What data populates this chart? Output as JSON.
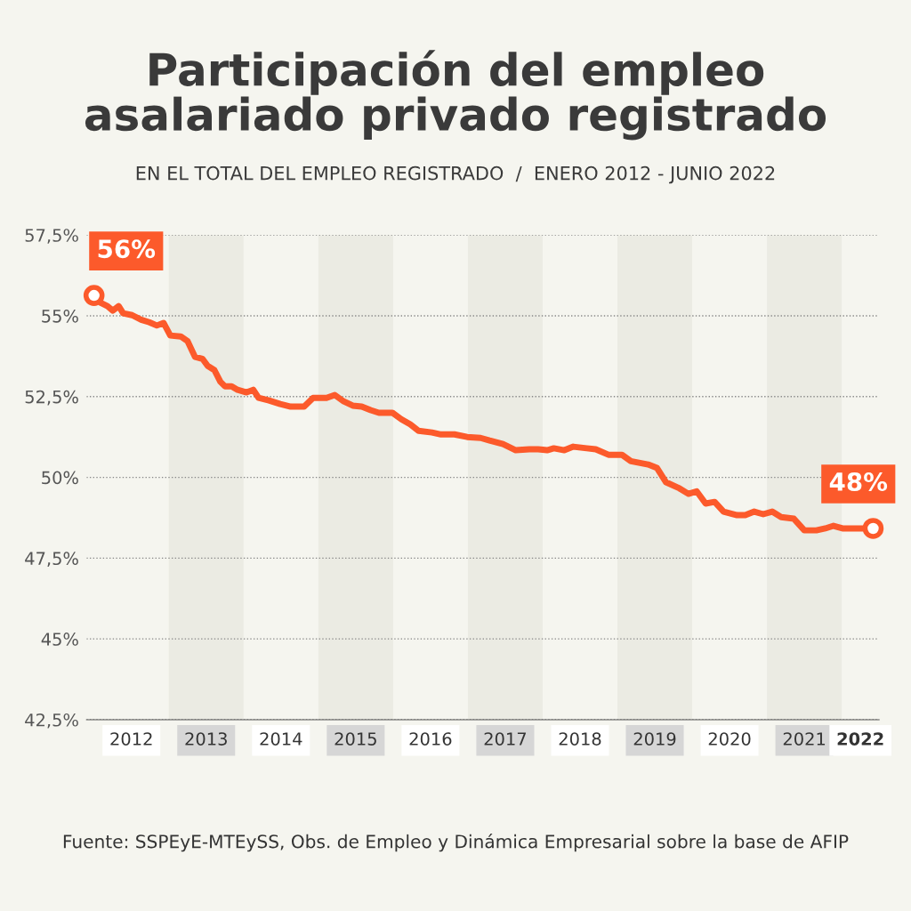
{
  "chart_data": {
    "type": "line",
    "title": "Participación del empleo\nasalariado privado registrado",
    "subtitle": "EN EL TOTAL DEL EMPLEO REGISTRADO  /  ENERO 2012 - JUNIO 2022",
    "x": [
      2012.0,
      2012.09,
      2012.18,
      2012.25,
      2012.33,
      2012.39,
      2012.51,
      2012.63,
      2012.74,
      2012.84,
      2012.93,
      2013.02,
      2013.16,
      2013.25,
      2013.35,
      2013.45,
      2013.52,
      2013.61,
      2013.69,
      2013.75,
      2013.84,
      2013.92,
      2014.04,
      2014.13,
      2014.2,
      2014.34,
      2014.49,
      2014.63,
      2014.81,
      2014.93,
      2015.11,
      2015.22,
      2015.34,
      2015.46,
      2015.58,
      2015.7,
      2015.81,
      2015.99,
      2016.11,
      2016.23,
      2016.34,
      2016.52,
      2016.64,
      2016.82,
      2016.99,
      2017.17,
      2017.29,
      2017.47,
      2017.64,
      2017.82,
      2017.94,
      2018.06,
      2018.15,
      2018.29,
      2018.41,
      2018.59,
      2018.71,
      2018.88,
      2019.06,
      2019.18,
      2019.41,
      2019.53,
      2019.65,
      2019.83,
      2019.95,
      2020.06,
      2020.18,
      2020.3,
      2020.42,
      2020.6,
      2020.71,
      2020.83,
      2020.95,
      2021.07,
      2021.19,
      2021.36,
      2021.5,
      2021.66,
      2021.78,
      2021.89,
      2022.01,
      2022.19,
      2022.42
    ],
    "series": [
      {
        "color": "#fc5a2b",
        "values": [
          55.63,
          55.4,
          55.3,
          55.16,
          55.3,
          55.08,
          55.02,
          54.88,
          54.8,
          54.7,
          54.78,
          54.39,
          54.36,
          54.22,
          53.73,
          53.67,
          53.45,
          53.32,
          52.96,
          52.82,
          52.82,
          52.71,
          52.63,
          52.71,
          52.46,
          52.38,
          52.27,
          52.19,
          52.19,
          52.46,
          52.46,
          52.55,
          52.35,
          52.22,
          52.19,
          52.08,
          52.0,
          52.0,
          51.8,
          51.64,
          51.44,
          51.39,
          51.33,
          51.33,
          51.25,
          51.22,
          51.14,
          51.03,
          50.84,
          50.87,
          50.87,
          50.84,
          50.9,
          50.84,
          50.95,
          50.9,
          50.87,
          50.7,
          50.7,
          50.5,
          50.4,
          50.29,
          49.85,
          49.66,
          49.49,
          49.57,
          49.19,
          49.24,
          48.94,
          48.83,
          48.83,
          48.94,
          48.86,
          48.94,
          48.77,
          48.72,
          48.36,
          48.36,
          48.42,
          48.5,
          48.42,
          48.42,
          48.42
        ]
      }
    ],
    "xlim": [
      2011.9,
      2022.5
    ],
    "ylim": [
      42.5,
      57.5
    ],
    "xticks": [
      {
        "value": 2012.5,
        "label": "2012"
      },
      {
        "value": 2013.5,
        "label": "2013"
      },
      {
        "value": 2014.5,
        "label": "2014"
      },
      {
        "value": 2015.5,
        "label": "2015"
      },
      {
        "value": 2016.5,
        "label": "2016"
      },
      {
        "value": 2017.5,
        "label": "2017"
      },
      {
        "value": 2018.5,
        "label": "2018"
      },
      {
        "value": 2019.5,
        "label": "2019"
      },
      {
        "value": 2020.5,
        "label": "2020"
      },
      {
        "value": 2021.5,
        "label": "2021"
      },
      {
        "value": 2022.25,
        "label": "2022"
      }
    ],
    "yticks": [
      {
        "value": 42.5,
        "label": "42,5%"
      },
      {
        "value": 45,
        "label": "45%"
      },
      {
        "value": 47.5,
        "label": "47,5%"
      },
      {
        "value": 50,
        "label": "50%"
      },
      {
        "value": 52.5,
        "label": "52,5%"
      },
      {
        "value": 55,
        "label": "55%"
      },
      {
        "value": 57.5,
        "label": "57,5%"
      }
    ],
    "bands": [
      {
        "axis": "x",
        "from": 2013,
        "to": 2014,
        "color": "#ebebe3"
      },
      {
        "axis": "x",
        "from": 2015,
        "to": 2016,
        "color": "#ebebe3"
      },
      {
        "axis": "x",
        "from": 2017,
        "to": 2018,
        "color": "#ebebe3"
      },
      {
        "axis": "x",
        "from": 2019,
        "to": 2020,
        "color": "#ebebe3"
      },
      {
        "axis": "x",
        "from": 2021,
        "to": 2022,
        "color": "#ebebe3"
      }
    ],
    "annotations": [
      {
        "text": "56%",
        "x": 2012.0,
        "y": 55.63
      },
      {
        "text": "48%",
        "x": 2022.42,
        "y": 48.42
      },
      "Fuente: SSPEyE-MTEySS, Obs. de Empleo y Dinámica Empresarial sobre la base de AFIP"
    ],
    "grid": "y",
    "marker": "none",
    "line_style": "solid",
    "legend": false
  }
}
